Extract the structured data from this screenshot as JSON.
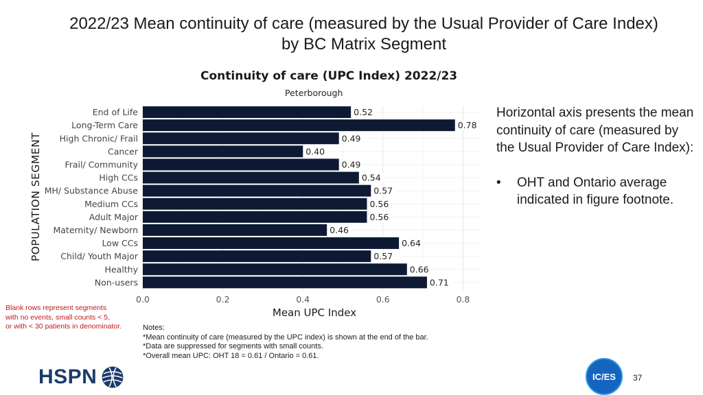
{
  "slide": {
    "title_line1": "2022/23 Mean continuity of care (measured by the Usual Provider of Care Index)",
    "title_line2": "by BC Matrix Segment",
    "page_number": "37"
  },
  "side_note": {
    "text": "Horizontal axis presents the mean continuity of care (measured by the Usual Provider of Care Index):",
    "bullet_symbol": "•",
    "bullet": "OHT and Ontario average indicated in figure footnote."
  },
  "blank_note": {
    "line1": "Blank rows represent segments",
    "line2": "with no events, small counts < 5,",
    "line3": "or with < 30 patients in denominator."
  },
  "notes": {
    "heading": "Notes:",
    "line1": "*Mean continuity of care (measured by the UPC index) is shown at the end of the bar.",
    "line2": "*Data are suppressed for segments with small counts.",
    "line3": "*Overall mean UPC: OHT 18 = 0.61 / Ontario = 0.61."
  },
  "logos": {
    "hspn": "HSPN",
    "ices": "IC/ES"
  },
  "colors": {
    "bar": "#0e1a33",
    "note_red": "#c0171a"
  },
  "chart_data": {
    "type": "bar",
    "orientation": "horizontal",
    "title": "Continuity of care (UPC Index) 2022/23",
    "subtitle": "Peterborough",
    "xlabel": "Mean UPC Index",
    "ylabel": "POPULATION SEGMENT",
    "xlim": [
      0,
      0.85
    ],
    "xticks": [
      0.0,
      0.2,
      0.4,
      0.6,
      0.8
    ],
    "xtick_labels": [
      "0.0",
      "0.2",
      "0.4",
      "0.6",
      "0.8"
    ],
    "categories": [
      "End of Life",
      "Long-Term Care",
      "High Chronic/ Frail",
      "Cancer",
      "Frail/ Community",
      "High CCs",
      "MH/ Substance Abuse",
      "Medium CCs",
      "Adult Major",
      "Maternity/ Newborn",
      "Low CCs",
      "Child/ Youth Major",
      "Healthy",
      "Non-users"
    ],
    "values": [
      0.52,
      0.78,
      0.49,
      0.4,
      0.49,
      0.54,
      0.57,
      0.56,
      0.56,
      0.46,
      0.64,
      0.57,
      0.66,
      0.71
    ],
    "value_labels": [
      "0.52",
      "0.78",
      "0.49",
      "0.40",
      "0.49",
      "0.54",
      "0.57",
      "0.56",
      "0.56",
      "0.46",
      "0.64",
      "0.57",
      "0.66",
      "0.71"
    ],
    "grid": true
  }
}
